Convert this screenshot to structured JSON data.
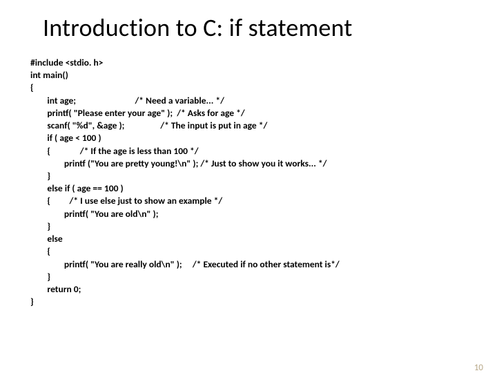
{
  "slide": {
    "title": "Introduction to C: if statement",
    "slide_number": "10",
    "title_color": "#000000",
    "title_fontsize": 36,
    "background_color": "#ffffff",
    "slide_number_color": "#b9a98a",
    "code_fontsize": 13.5,
    "code_fontweight": 700,
    "code": {
      "l0": "#include <stdio. h>",
      "l1": "int main()",
      "l2": "{",
      "l3": "        int age;                            /* Need a variable... */",
      "l4": "        printf( \"Please enter your age\" );  /* Asks for age */",
      "l5": "        scanf( \"%d\", &age );                 /* The input is put in age */",
      "l6": "        if ( age < 100 )",
      "l7": "        {              /* If the age is less than 100 */",
      "l8": "                printf (\"You are pretty young!\\n\" ); /* Just to show you it works... */",
      "l9": "        }",
      "l10": "        else if ( age == 100 )",
      "l11": "        {         /* I use else just to show an example */",
      "l12": "                printf( \"You are old\\n\" );",
      "l13": "        }",
      "l14": "        else",
      "l15": "        {",
      "l16": "                printf( \"You are really old\\n\" );     /* Executed if no other statement is*/",
      "l17": "        }",
      "l18": "        return 0;",
      "l19": "}"
    }
  }
}
